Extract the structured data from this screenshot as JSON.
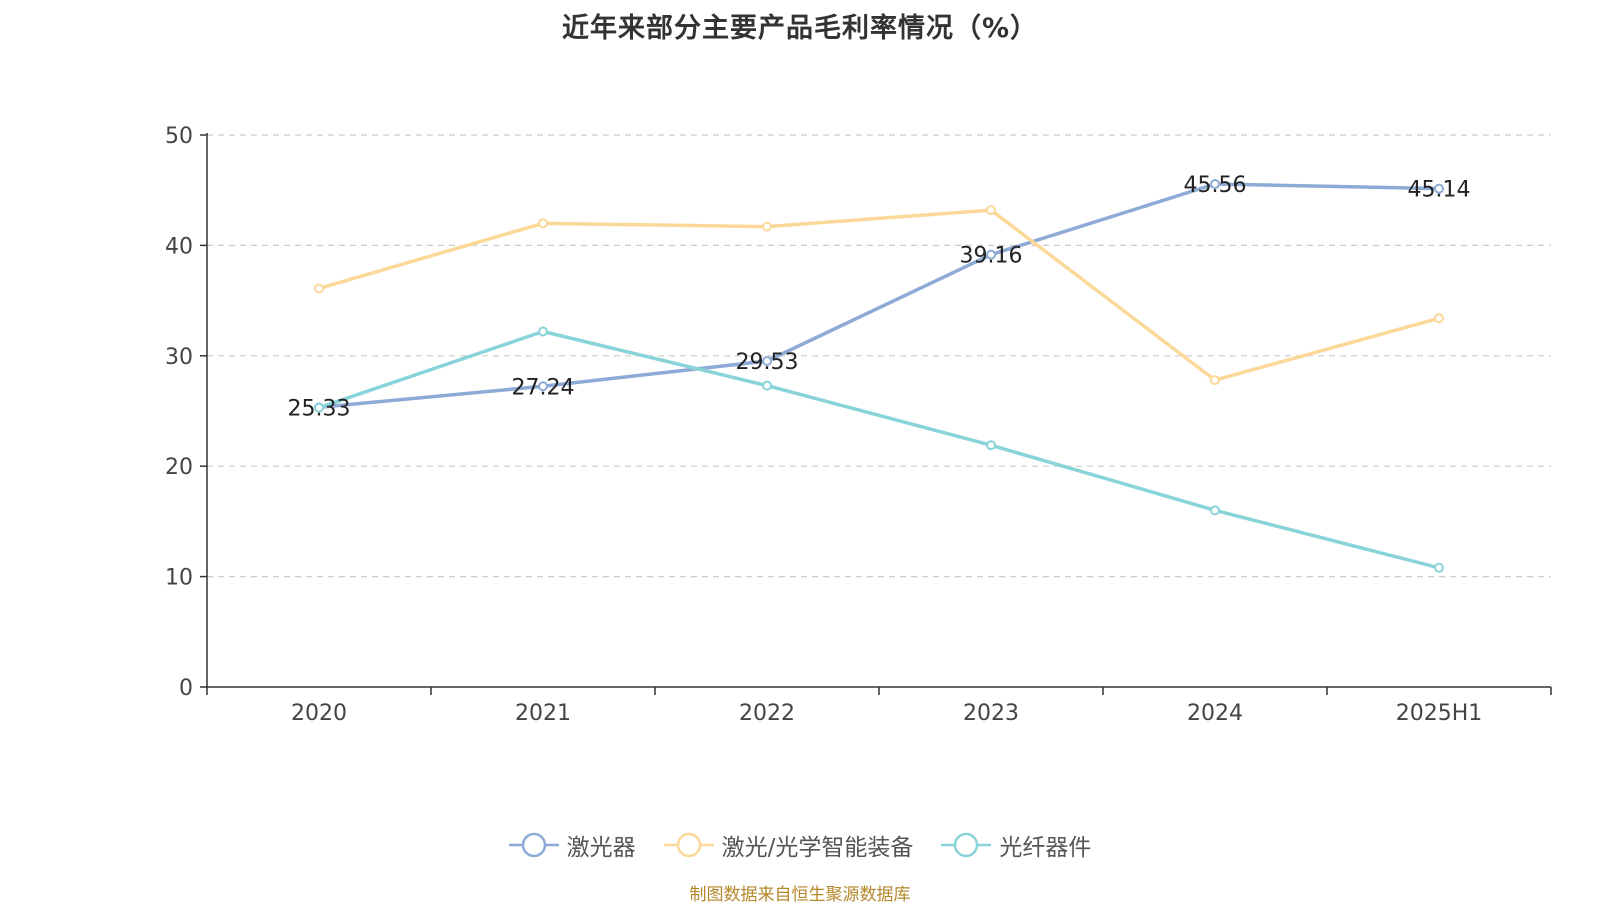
{
  "title": "近年来部分主要产品毛利率情况（%）",
  "source": "制图数据来自恒生聚源数据库",
  "chart_data": {
    "type": "line",
    "title": "近年来部分主要产品毛利率情况（%）",
    "categories": [
      "2020",
      "2021",
      "2022",
      "2023",
      "2024",
      "2025H1"
    ],
    "ylim": [
      0,
      50
    ],
    "yticks": [
      0,
      10,
      20,
      30,
      40,
      50
    ],
    "grid": true,
    "legend_position": "bottom",
    "series": [
      {
        "name": "激光器",
        "color": "#8eaad6",
        "values": [
          25.33,
          27.24,
          29.53,
          39.16,
          45.56,
          45.14
        ],
        "labels": [
          "25.33",
          "27.24",
          "29.53",
          "39.16",
          "45.56",
          "45.14"
        ]
      },
      {
        "name": "激光/光学智能装备",
        "color": "#fbd898",
        "values": [
          36.1,
          42.0,
          41.7,
          43.2,
          27.8,
          33.4
        ]
      },
      {
        "name": "光纤器件",
        "color": "#89d4d8",
        "values": [
          25.3,
          32.2,
          27.3,
          21.9,
          16.0,
          10.8
        ]
      }
    ]
  }
}
